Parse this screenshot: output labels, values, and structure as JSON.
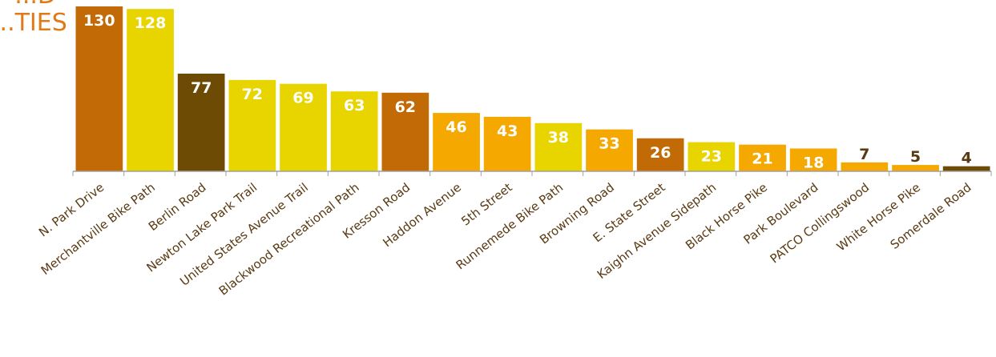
{
  "header": {
    "title_line1": "...D",
    "title_line2": "...TIES"
  },
  "chart_data": {
    "type": "bar",
    "title": "",
    "xlabel": "",
    "ylabel": "",
    "ylim": [
      0,
      130
    ],
    "grid": false,
    "legend": "none",
    "categories": [
      "N. Park Drive",
      "Merchantville Bike Path",
      "Berlin Road",
      "Newton Lake Park Trail",
      "United States Avenue Trail",
      "Blackwood Recreational Path",
      "Kresson Road",
      "Haddon Avenue",
      "5th Street",
      "Runnemede Bike Path",
      "Browning Road",
      "E. State Street",
      "Kaighn Avenue Sidepath",
      "Black Horse Pike",
      "Park Boulevard",
      "PATCO Collingswood",
      "White Horse Pike",
      "Somerdale Road"
    ],
    "values": [
      130,
      128,
      77,
      72,
      69,
      63,
      62,
      46,
      43,
      38,
      33,
      26,
      23,
      21,
      18,
      7,
      5,
      4
    ],
    "bar_colors": [
      "#c26a05",
      "#e8d500",
      "#6d4b05",
      "#e8d500",
      "#e8d500",
      "#e8d500",
      "#c26a05",
      "#f5a800",
      "#f5a800",
      "#e8d500",
      "#f5a800",
      "#c26a05",
      "#e8d500",
      "#f5a800",
      "#f5a800",
      "#f5a800",
      "#f5a800",
      "#6d4b05"
    ],
    "label_colors": [
      "#ffffff",
      "#ffffff",
      "#ffffff",
      "#ffffff",
      "#ffffff",
      "#ffffff",
      "#ffffff",
      "#ffffff",
      "#ffffff",
      "#ffffff",
      "#ffffff",
      "#ffffff",
      "#ffffff",
      "#ffffff",
      "#ffffff",
      "#5a3a12",
      "#5a3a12",
      "#5a3a12"
    ],
    "axis_color": "#a0a0a0",
    "category_label_color": "#5a3a12"
  }
}
